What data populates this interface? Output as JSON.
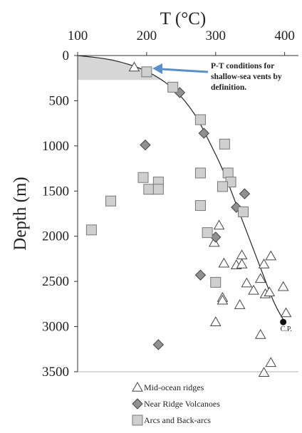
{
  "chart_data": {
    "type": "scatter",
    "x_axis": {
      "title": "T (°C)",
      "range": [
        100,
        420
      ],
      "ticks": [
        100,
        200,
        300,
        400
      ],
      "position": "top"
    },
    "y_axis": {
      "title": "Depth (m)",
      "range": [
        0,
        3500
      ],
      "ticks": [
        0,
        500,
        1000,
        1500,
        2000,
        2500,
        3000,
        3500
      ],
      "inverted": true
    },
    "annotation": {
      "lines": [
        "P-T conditions for",
        "shallow-sea vents by",
        "definition."
      ],
      "arrow_color": "#5b8fc7"
    },
    "critical_point": {
      "label": "C.P.",
      "x": 400,
      "y": 2950
    },
    "boiling_curve": [
      [
        100,
        0
      ],
      [
        150,
        40
      ],
      [
        200,
        160
      ],
      [
        240,
        360
      ],
      [
        270,
        640
      ],
      [
        290,
        940
      ],
      [
        310,
        1250
      ],
      [
        330,
        1650
      ],
      [
        350,
        2050
      ],
      [
        370,
        2450
      ],
      [
        385,
        2750
      ],
      [
        400,
        2950
      ]
    ],
    "shaded_region": {
      "x_min": 100,
      "y_max": 270
    },
    "legend": {
      "placement": "bottom"
    },
    "series": [
      {
        "name": "Mid-ocean ridges",
        "marker": "triangle",
        "color": "#ffffff",
        "points": [
          [
            182,
            130
          ],
          [
            305,
            1880
          ],
          [
            298,
            2070
          ],
          [
            312,
            2300
          ],
          [
            310,
            2680
          ],
          [
            310,
            2710
          ],
          [
            300,
            2950
          ],
          [
            330,
            2320
          ],
          [
            338,
            2210
          ],
          [
            345,
            2520
          ],
          [
            338,
            2310
          ],
          [
            355,
            2600
          ],
          [
            365,
            2470
          ],
          [
            370,
            2310
          ],
          [
            380,
            2220
          ],
          [
            372,
            2640
          ],
          [
            378,
            2620
          ],
          [
            335,
            2760
          ],
          [
            365,
            3090
          ],
          [
            398,
            2560
          ],
          [
            402,
            2850
          ],
          [
            380,
            3400
          ],
          [
            370,
            3510
          ]
        ]
      },
      {
        "name": "Near Ridge Volcanoes",
        "marker": "diamond",
        "color": "#909090",
        "points": [
          [
            248,
            410
          ],
          [
            283,
            860
          ],
          [
            198,
            990
          ],
          [
            300,
            2010
          ],
          [
            342,
            1530
          ],
          [
            330,
            1680
          ],
          [
            278,
            2430
          ],
          [
            217,
            3200
          ]
        ]
      },
      {
        "name": "Arcs and Back-arcs",
        "marker": "square",
        "color": "#cfcfcf",
        "points": [
          [
            200,
            180
          ],
          [
            238,
            350
          ],
          [
            278,
            710
          ],
          [
            313,
            980
          ],
          [
            195,
            1350
          ],
          [
            203,
            1480
          ],
          [
            217,
            1400
          ],
          [
            217,
            1480
          ],
          [
            278,
            1300
          ],
          [
            318,
            1300
          ],
          [
            322,
            1400
          ],
          [
            310,
            1450
          ],
          [
            148,
            1610
          ],
          [
            120,
            1930
          ],
          [
            278,
            1660
          ],
          [
            340,
            1730
          ],
          [
            288,
            1960
          ],
          [
            300,
            2510
          ]
        ]
      }
    ]
  }
}
